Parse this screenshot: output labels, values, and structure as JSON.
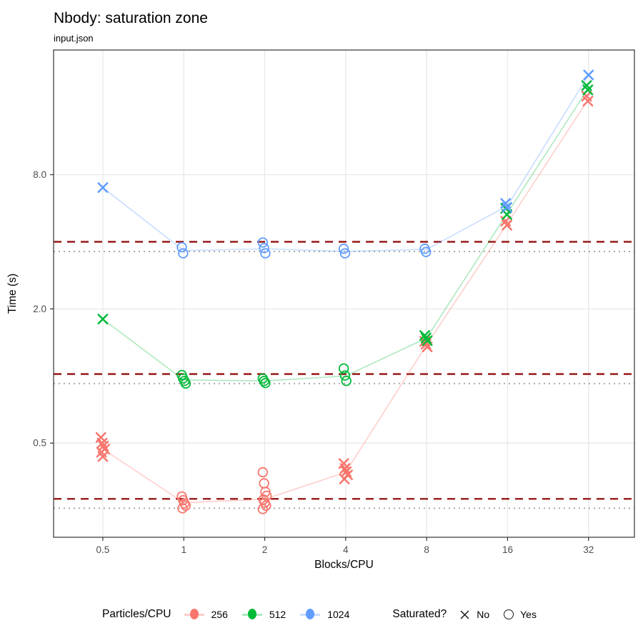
{
  "title": "Nbody: saturation zone",
  "subtitle": "input.json",
  "chart_data": {
    "type": "scatter",
    "title": "Nbody: saturation zone",
    "subtitle": "input.json",
    "xlabel": "Blocks/CPU",
    "ylabel": "Time (s)",
    "x_scale": "log2",
    "y_scale": "log10",
    "grid": true,
    "x_ticks": [
      "0.5",
      "1",
      "2",
      "4",
      "8",
      "16",
      "32"
    ],
    "x_tick_values": [
      0.5,
      1,
      2,
      4,
      8,
      16,
      32
    ],
    "y_ticks": [
      "0.5",
      "2.0",
      "8.0"
    ],
    "y_tick_values": [
      0.5,
      2.0,
      8.0
    ],
    "x_domain": [
      0.328,
      47.4
    ],
    "y_domain": [
      0.189,
      29.0
    ],
    "colors": {
      "grid": "#E8E8E8",
      "panel_border": "#333333",
      "tick_label": "#4D4D4D",
      "dashed_ref": "#9C2323",
      "dotted_ref": "#ABABAB"
    },
    "ref_lines_dashed": {
      "style": "dashed",
      "color": "#9C2323",
      "values": [
        4.0,
        1.02,
        0.281
      ]
    },
    "ref_lines_dotted": {
      "style": "dotted",
      "color": "#ABABAB",
      "values": [
        3.62,
        0.925,
        0.255
      ]
    },
    "series": [
      {
        "name": "256",
        "color": "#F8766D",
        "line_color": "rgba(248,118,109,0.35)",
        "line": [
          [
            0.5,
            0.47
          ],
          [
            1,
            0.27
          ],
          [
            2,
            0.28
          ],
          [
            4,
            0.37
          ],
          [
            8,
            1.38
          ],
          [
            16,
            4.85
          ],
          [
            32,
            17.5
          ]
        ],
        "clusters": [
          {
            "x": 0.5,
            "shape": "cross",
            "values": [
              0.53,
              0.5,
              0.485,
              0.47,
              0.455,
              0.435
            ]
          },
          {
            "x": 1,
            "shape": "circle",
            "values": [
              0.288,
              0.277,
              0.268,
              0.262,
              0.255
            ]
          },
          {
            "x": 2,
            "shape": "circle",
            "values": [
              0.37,
              0.33,
              0.302,
              0.29,
              0.279,
              0.27,
              0.262,
              0.253
            ]
          },
          {
            "x": 4,
            "shape": "cross",
            "values": [
              0.405,
              0.385,
              0.372,
              0.36,
              0.345
            ]
          },
          {
            "x": 8,
            "shape": "cross",
            "values": [
              1.43,
              1.39,
              1.35
            ]
          },
          {
            "x": 16,
            "shape": "cross",
            "values": [
              4.95,
              4.75
            ]
          },
          {
            "x": 32,
            "shape": "cross",
            "values": [
              18.0,
              17.1
            ]
          }
        ]
      },
      {
        "name": "512",
        "color": "#00BA38",
        "line_color": "rgba(0,186,56,0.32)",
        "line": [
          [
            0.5,
            1.8
          ],
          [
            1,
            0.96
          ],
          [
            2,
            0.95
          ],
          [
            4,
            1.0
          ],
          [
            8,
            1.48
          ],
          [
            16,
            5.4
          ],
          [
            32,
            19.6
          ]
        ],
        "clusters": [
          {
            "x": 0.5,
            "shape": "cross",
            "values": [
              1.8
            ]
          },
          {
            "x": 1,
            "shape": "circle",
            "values": [
              1.01,
              0.975,
              0.95,
              0.925
            ]
          },
          {
            "x": 2,
            "shape": "circle",
            "values": [
              0.975,
              0.95,
              0.93
            ]
          },
          {
            "x": 4,
            "shape": "circle",
            "values": [
              1.08,
              1.005,
              0.95
            ]
          },
          {
            "x": 8,
            "shape": "cross",
            "values": [
              1.52,
              1.48,
              1.44
            ]
          },
          {
            "x": 16,
            "shape": "cross",
            "values": [
              5.65,
              5.3
            ]
          },
          {
            "x": 32,
            "shape": "cross",
            "values": [
              20.1,
              19.2
            ]
          }
        ]
      },
      {
        "name": "1024",
        "color": "#619CFF",
        "line_color": "rgba(97,156,255,0.35)",
        "line": [
          [
            0.5,
            7.0
          ],
          [
            1,
            3.65
          ],
          [
            2,
            3.72
          ],
          [
            4,
            3.62
          ],
          [
            8,
            3.7
          ],
          [
            16,
            5.8
          ],
          [
            32,
            22.4
          ]
        ],
        "clusters": [
          {
            "x": 0.5,
            "shape": "cross",
            "values": [
              7.0
            ]
          },
          {
            "x": 1,
            "shape": "circle",
            "values": [
              3.78,
              3.55
            ]
          },
          {
            "x": 2,
            "shape": "circle",
            "values": [
              3.97,
              3.75,
              3.55
            ]
          },
          {
            "x": 4,
            "shape": "circle",
            "values": [
              3.72,
              3.55
            ]
          },
          {
            "x": 8,
            "shape": "circle",
            "values": [
              3.72,
              3.6
            ]
          },
          {
            "x": 16,
            "shape": "cross",
            "values": [
              5.95,
              5.7
            ]
          },
          {
            "x": 32,
            "shape": "cross",
            "values": [
              22.4
            ]
          }
        ]
      }
    ],
    "legend": {
      "color_title": "Particles/CPU",
      "entries": [
        {
          "label": "256",
          "color": "#F8766D",
          "line_color": "rgba(248,118,109,0.35)"
        },
        {
          "label": "512",
          "color": "#00BA38",
          "line_color": "rgba(0,186,56,0.32)"
        },
        {
          "label": "1024",
          "color": "#619CFF",
          "line_color": "rgba(97,156,255,0.35)"
        }
      ],
      "shape_title": "Saturated?",
      "shapes": [
        {
          "label": "No",
          "shape": "cross"
        },
        {
          "label": "Yes",
          "shape": "circle"
        }
      ]
    }
  }
}
